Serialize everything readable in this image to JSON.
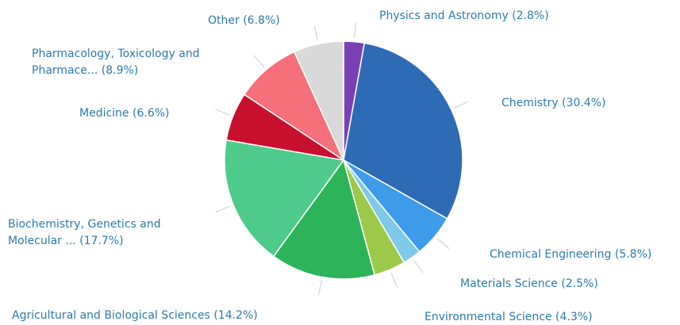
{
  "chart_data": {
    "type": "pie",
    "categories": [
      "Physics and Astronomy",
      "Chemistry",
      "Chemical Engineering",
      "Materials Science",
      "Environmental Science",
      "Agricultural and Biological Sciences",
      "Biochemistry, Genetics and Molecular ...",
      "Medicine",
      "Pharmacology, Toxicology and Pharmace...",
      "Other"
    ],
    "values": [
      2.8,
      30.4,
      5.8,
      2.5,
      4.3,
      14.2,
      17.7,
      6.6,
      8.9,
      6.8
    ],
    "value_labels": [
      "(2.8%)",
      "(30.4%)",
      "(5.8%)",
      "(2.5%)",
      "(4.3%)",
      "(14.2%)",
      "(17.7%)",
      "(6.6%)",
      "(8.9%)",
      "(6.8%)"
    ],
    "colors": [
      "#7b3fb5",
      "#2e6bb5",
      "#3d9be9",
      "#7fc9e8",
      "#9cc94a",
      "#2db45a",
      "#4ecb8a",
      "#c8102e",
      "#f6707b",
      "#d9d9d9"
    ]
  }
}
